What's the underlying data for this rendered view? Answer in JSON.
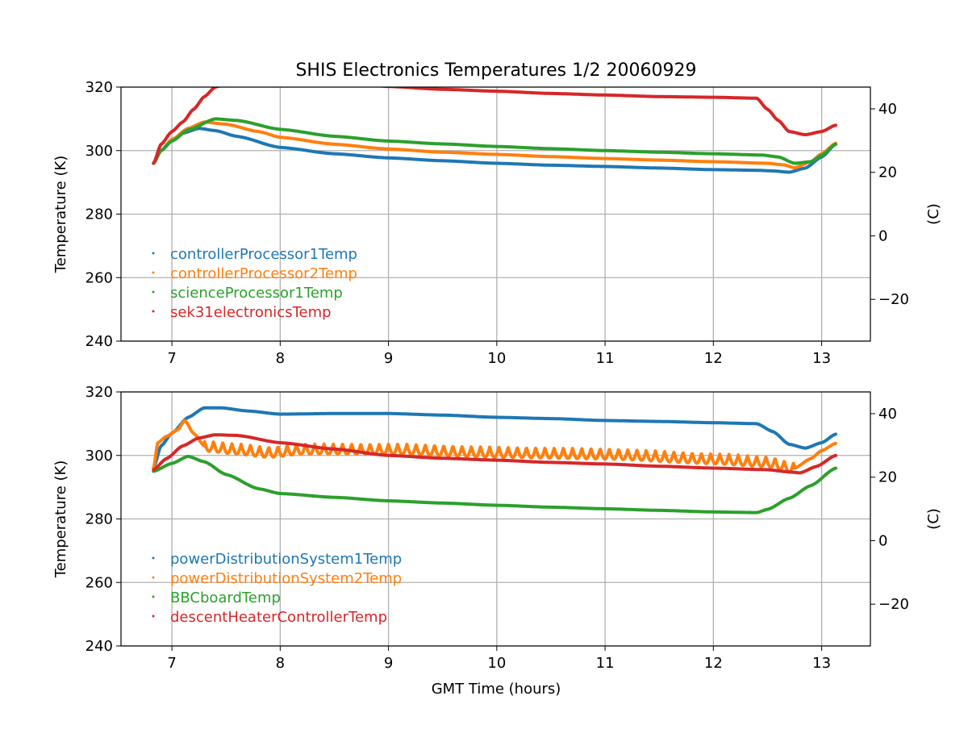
{
  "chart_data": [
    {
      "type": "line",
      "title": "SHIS Electronics Temperatures 1/2 20060929",
      "xlabel": "",
      "ylabel": "Temperature (K)",
      "ylabel_right": "(C)",
      "xlim": [
        6.53,
        13.45
      ],
      "ylim": [
        240,
        320
      ],
      "xticks": [
        "7",
        "8",
        "9",
        "10",
        "11",
        "12",
        "13"
      ],
      "yticks": [
        "240",
        "260",
        "280",
        "300",
        "320"
      ],
      "yticks_right": [
        "−20",
        "0",
        "20",
        "40"
      ],
      "grid": true,
      "legend_position": "lower-left",
      "series": [
        {
          "name": "controllerProcessor1Temp",
          "color": "#1f77b4",
          "x": [
            6.83,
            6.9,
            7.0,
            7.1,
            7.25,
            7.4,
            7.6,
            8.0,
            8.5,
            9.0,
            9.5,
            10.0,
            10.5,
            11.0,
            11.5,
            12.0,
            12.4,
            12.55,
            12.7,
            12.85,
            13.0,
            13.13
          ],
          "y": [
            296,
            300,
            303,
            305.5,
            307,
            306.3,
            304.5,
            301,
            299,
            297.7,
            296.8,
            296,
            295.4,
            295,
            294.5,
            294,
            293.8,
            293.6,
            293.2,
            294.5,
            298,
            302
          ]
        },
        {
          "name": "controllerProcessor2Temp",
          "color": "#ff7f0e",
          "x": [
            6.83,
            6.9,
            7.0,
            7.15,
            7.3,
            7.5,
            7.8,
            8.0,
            8.5,
            9.0,
            9.5,
            10.0,
            10.5,
            11.0,
            11.5,
            12.0,
            12.5,
            12.65,
            12.75,
            12.9,
            13.0,
            13.13
          ],
          "y": [
            296,
            300,
            303.5,
            307,
            309,
            308.3,
            306,
            304.2,
            302,
            300.5,
            299.5,
            298.8,
            298.1,
            297.5,
            297,
            296.5,
            296,
            295.5,
            294.6,
            296.5,
            299,
            302.3
          ]
        },
        {
          "name": "scienceProcessor1Temp",
          "color": "#2ca02c",
          "x": [
            6.83,
            6.9,
            7.0,
            7.15,
            7.4,
            7.6,
            8.0,
            8.5,
            9.0,
            9.5,
            10.0,
            10.5,
            11.0,
            11.5,
            12.0,
            12.45,
            12.6,
            12.75,
            12.9,
            13.0,
            13.13
          ],
          "y": [
            296,
            300,
            303,
            306.5,
            310,
            309.5,
            306.7,
            304.5,
            303,
            302.1,
            301.3,
            300.6,
            300,
            299.5,
            299,
            298.6,
            298,
            296,
            296.5,
            298.5,
            302
          ]
        },
        {
          "name": "sek31electronicsTemp",
          "color": "#d62728",
          "x": [
            6.83,
            6.9,
            7.0,
            7.1,
            7.2,
            7.3,
            7.4,
            7.6,
            8.0,
            8.5,
            9.0,
            9.5,
            10.0,
            10.5,
            11.0,
            11.5,
            12.0,
            12.4,
            12.5,
            12.6,
            12.7,
            12.85,
            13.0,
            13.13
          ],
          "y": [
            296,
            302,
            306,
            309,
            313,
            317,
            320,
            322.5,
            323.5,
            322,
            320.2,
            319.3,
            318.7,
            318,
            317.5,
            317,
            316.8,
            316.5,
            313,
            309.5,
            306,
            305,
            306,
            308
          ]
        }
      ]
    },
    {
      "type": "line",
      "title": "",
      "xlabel": "GMT Time (hours)",
      "ylabel": "Temperature (K)",
      "ylabel_right": "(C)",
      "xlim": [
        6.53,
        13.45
      ],
      "ylim": [
        240,
        320
      ],
      "xticks": [
        "7",
        "8",
        "9",
        "10",
        "11",
        "12",
        "13"
      ],
      "yticks": [
        "240",
        "260",
        "280",
        "300",
        "320"
      ],
      "yticks_right": [
        "−20",
        "0",
        "20",
        "40"
      ],
      "grid": true,
      "legend_position": "lower-left",
      "series": [
        {
          "name": "powerDistributionSystem1Temp",
          "color": "#1f77b4",
          "x": [
            6.83,
            6.9,
            7.0,
            7.15,
            7.3,
            7.45,
            7.7,
            8.0,
            8.5,
            9.0,
            9.5,
            10.0,
            10.5,
            11.0,
            11.5,
            12.0,
            12.4,
            12.55,
            12.7,
            12.85,
            13.0,
            13.13
          ],
          "y": [
            296,
            303,
            307,
            312,
            315,
            315,
            314,
            313,
            313.2,
            313.2,
            312.7,
            312,
            311.6,
            311,
            310.7,
            310.3,
            310,
            307.5,
            303.5,
            302.3,
            304,
            306.7
          ]
        },
        {
          "name": "powerDistributionSystem2Temp",
          "color": "#ff7f0e",
          "x": [
            6.83,
            6.87,
            6.95,
            7.05,
            7.12,
            7.2,
            7.3,
            7.6,
            7.9,
            8.2,
            9.0,
            10.0,
            11.0,
            12.0,
            12.5,
            12.75,
            12.9,
            13.0,
            13.13
          ],
          "y": [
            296,
            304,
            306,
            308,
            311,
            307,
            303,
            302,
            301,
            302,
            302,
            301,
            300.5,
            299,
            298,
            296,
            299,
            301.5,
            303.8
          ],
          "oscillation": {
            "start": 7.3,
            "end": 12.75,
            "period_hours": 0.085,
            "amplitude_K": 1.6
          }
        },
        {
          "name": "BBCboardTemp",
          "color": "#2ca02c",
          "x": [
            6.83,
            7.0,
            7.15,
            7.3,
            7.5,
            7.8,
            8.0,
            8.5,
            9.0,
            9.5,
            10.0,
            10.5,
            11.0,
            11.5,
            12.0,
            12.4,
            12.5,
            12.7,
            12.9,
            13.13
          ],
          "y": [
            295,
            297.5,
            299.7,
            298,
            294,
            289.5,
            288,
            286.8,
            285.7,
            285,
            284.3,
            283.7,
            283.2,
            282.7,
            282.2,
            282,
            283,
            286.5,
            290.5,
            296
          ]
        },
        {
          "name": "descentHeaterControllerTemp",
          "color": "#d62728",
          "x": [
            6.83,
            6.95,
            7.1,
            7.25,
            7.4,
            7.6,
            8.0,
            8.5,
            9.0,
            9.5,
            10.0,
            10.5,
            11.0,
            11.5,
            12.0,
            12.5,
            12.7,
            12.8,
            12.95,
            13.13
          ],
          "y": [
            295.5,
            299,
            303,
            305.5,
            306.5,
            306.3,
            304,
            302,
            300,
            299.1,
            298.5,
            297.8,
            297.3,
            296.6,
            296,
            295.5,
            294.8,
            294.5,
            296.5,
            300
          ]
        }
      ]
    }
  ]
}
